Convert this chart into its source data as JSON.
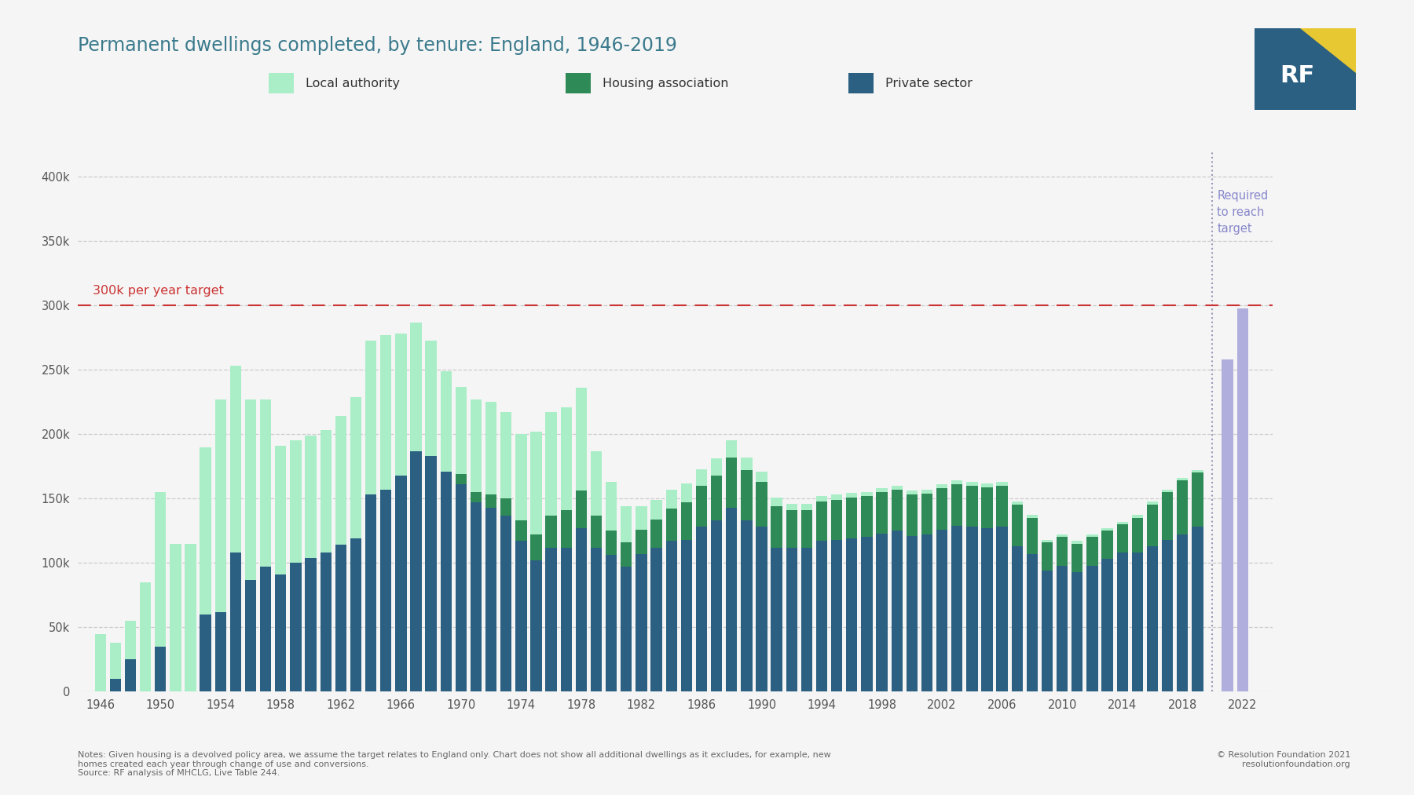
{
  "title": "Permanent dwellings completed, by tenure: England, 1946-2019",
  "title_color": "#3a7a8c",
  "background_color": "#f5f5f5",
  "target_line_y": 300000,
  "target_line_label": "300k per year target",
  "target_line_color": "#cc3333",
  "required_label": "Required\nto reach\ntarget",
  "required_label_color": "#8888cc",
  "future_bar_color": "#b0aedd",
  "legend_labels": [
    "Local authority",
    "Housing association",
    "Private sector"
  ],
  "legend_colors": [
    "#aaeec8",
    "#2e8b57",
    "#2b6082"
  ],
  "notes_line1": "Notes: Given housing is a devolved policy area, we assume the target relates to England only. Chart does not show all additional dwellings as it excludes, for example, new",
  "notes_line2": "homes created each year through change of use and conversions.",
  "notes_line3": "Source: RF analysis of MHCLG, Live Table 244.",
  "copyright": "© Resolution Foundation 2021\nresolutionfoundation.org",
  "years": [
    1946,
    1947,
    1948,
    1949,
    1950,
    1951,
    1952,
    1953,
    1954,
    1955,
    1956,
    1957,
    1958,
    1959,
    1960,
    1961,
    1962,
    1963,
    1964,
    1965,
    1966,
    1967,
    1968,
    1969,
    1970,
    1971,
    1972,
    1973,
    1974,
    1975,
    1976,
    1977,
    1978,
    1979,
    1980,
    1981,
    1982,
    1983,
    1984,
    1985,
    1986,
    1987,
    1988,
    1989,
    1990,
    1991,
    1992,
    1993,
    1994,
    1995,
    1996,
    1997,
    1998,
    1999,
    2000,
    2001,
    2002,
    2003,
    2004,
    2005,
    2006,
    2007,
    2008,
    2009,
    2010,
    2011,
    2012,
    2013,
    2014,
    2015,
    2016,
    2017,
    2018,
    2019
  ],
  "private_sector": [
    0,
    10000,
    25000,
    0,
    35000,
    0,
    0,
    60000,
    62000,
    108000,
    87000,
    97000,
    91000,
    100000,
    104000,
    108000,
    114000,
    119000,
    153000,
    157000,
    168000,
    187000,
    183000,
    171000,
    161000,
    147000,
    143000,
    137000,
    117000,
    102000,
    112000,
    112000,
    127000,
    112000,
    106000,
    97000,
    107000,
    112000,
    117000,
    118000,
    128000,
    133000,
    143000,
    133000,
    128000,
    112000,
    112000,
    112000,
    117000,
    118000,
    119000,
    120000,
    123000,
    125000,
    121000,
    122000,
    126000,
    129000,
    128000,
    127000,
    128000,
    113000,
    107000,
    94000,
    98000,
    93000,
    98000,
    103000,
    108000,
    108000,
    113000,
    118000,
    122000,
    128000
  ],
  "housing_assoc": [
    0,
    0,
    0,
    0,
    0,
    0,
    0,
    0,
    0,
    0,
    0,
    0,
    0,
    0,
    0,
    0,
    0,
    0,
    0,
    0,
    0,
    0,
    0,
    0,
    8000,
    8000,
    10000,
    13000,
    16000,
    20000,
    25000,
    29000,
    29000,
    25000,
    19000,
    19000,
    19000,
    22000,
    25000,
    29000,
    32000,
    35000,
    39000,
    39000,
    35000,
    32000,
    29000,
    29000,
    31000,
    31000,
    32000,
    32000,
    32000,
    32000,
    32000,
    32000,
    32000,
    32000,
    32000,
    32000,
    32000,
    32000,
    28000,
    22000,
    22000,
    22000,
    22000,
    22000,
    22000,
    27000,
    32000,
    37000,
    42000,
    42000
  ],
  "local_authority": [
    45000,
    28000,
    30000,
    85000,
    120000,
    115000,
    115000,
    130000,
    165000,
    145000,
    140000,
    130000,
    100000,
    95000,
    95000,
    95000,
    100000,
    110000,
    120000,
    120000,
    110000,
    100000,
    90000,
    78000,
    68000,
    72000,
    72000,
    67000,
    67000,
    80000,
    80000,
    80000,
    80000,
    50000,
    38000,
    28000,
    18000,
    15000,
    15000,
    15000,
    13000,
    13000,
    13000,
    10000,
    8000,
    7000,
    5000,
    5000,
    4000,
    4000,
    3500,
    3000,
    3000,
    3000,
    3000,
    3000,
    3000,
    3000,
    3000,
    3000,
    3000,
    2500,
    2500,
    2000,
    2000,
    2000,
    2000,
    2000,
    2000,
    2500,
    2500,
    2000,
    2000,
    2000
  ],
  "future_years": [
    2021,
    2022
  ],
  "future_values": [
    258000,
    298000
  ],
  "divider_year": 2019.5,
  "ylim": [
    0,
    420000
  ],
  "yticks": [
    0,
    50000,
    100000,
    150000,
    200000,
    250000,
    300000,
    350000,
    400000
  ],
  "xtick_years": [
    1946,
    1950,
    1954,
    1958,
    1962,
    1966,
    1970,
    1974,
    1978,
    1982,
    1986,
    1990,
    1994,
    1998,
    2002,
    2006,
    2010,
    2014,
    2018,
    2022
  ]
}
